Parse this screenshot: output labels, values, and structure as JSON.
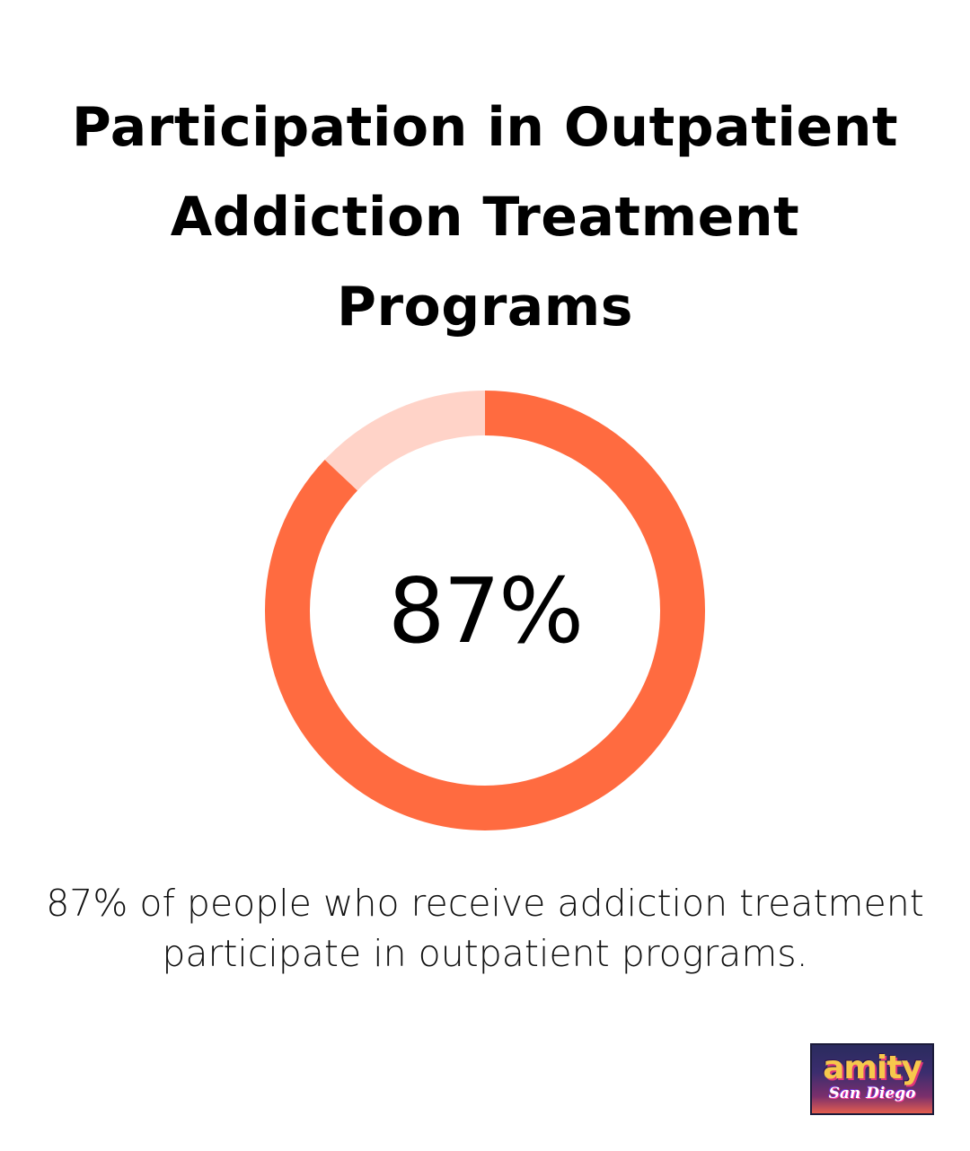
{
  "chart_data": {
    "type": "pie",
    "style": "donut",
    "title": "Participation in Outpatient Addiction Treatment Programs",
    "center_label": "87%",
    "caption": "87% of people who receive addiction treatment participate in outpatient programs.",
    "slices": [
      {
        "value": 87,
        "color": "#ff6b40"
      },
      {
        "value": 13,
        "color": "#ffd3c8"
      }
    ]
  },
  "logo": {
    "text": "amity San Diego"
  }
}
